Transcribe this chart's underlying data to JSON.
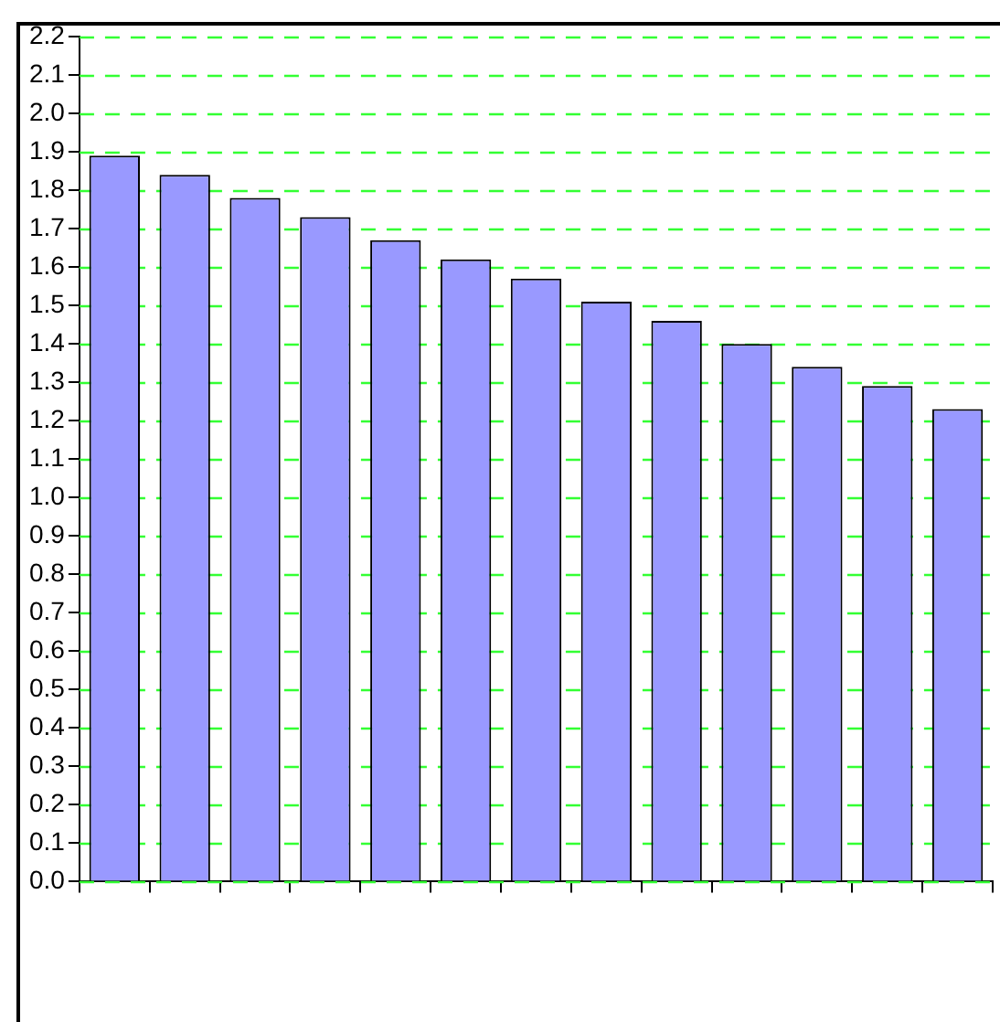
{
  "chart_data": {
    "type": "bar",
    "categories": [
      null,
      null,
      null,
      null,
      null,
      null,
      null,
      null,
      null,
      null,
      null,
      null,
      null
    ],
    "values": [
      1.89,
      1.84,
      1.78,
      1.73,
      1.67,
      1.62,
      1.57,
      1.51,
      1.46,
      1.4,
      1.34,
      1.29,
      1.23
    ],
    "color": "#9999ff",
    "ylim": [
      0,
      2.2
    ],
    "yticks": [
      {
        "value": 0,
        "label": "0.0"
      },
      0.1,
      0.2,
      0.3,
      0.4,
      0.5,
      0.6,
      0.7,
      0.8,
      0.9,
      {
        "value": 1,
        "label": "1.0"
      },
      1.1,
      1.2,
      1.3,
      1.4,
      1.5,
      1.6,
      1.7,
      1.8,
      1.9,
      {
        "value": 2,
        "label": "2.0"
      },
      2.1,
      2.2
    ],
    "grid": "y",
    "legend": false
  }
}
